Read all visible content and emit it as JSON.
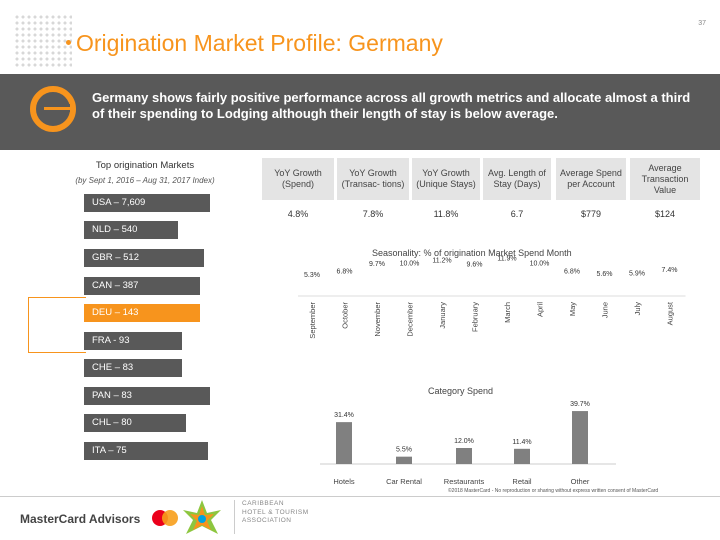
{
  "page_number": "37",
  "title": "Origination Market Profile: Germany",
  "banner_text": "Germany shows fairly positive performance across all growth metrics and allocate almost a third of their spending to Lodging although their length of stay is below average.",
  "markets": {
    "title": "Top origination Markets",
    "subtitle": "(by Sept 1, 2016 – Aug 31, 2017 Index)",
    "items": [
      {
        "label": "USA – 7,609",
        "highlight": false
      },
      {
        "label": "NLD – 540",
        "highlight": false
      },
      {
        "label": "GBR – 512",
        "highlight": false
      },
      {
        "label": "CAN – 387",
        "highlight": false
      },
      {
        "label": "DEU – 143",
        "highlight": true
      },
      {
        "label": "FRA - 93",
        "highlight": false
      },
      {
        "label": "CHE – 83",
        "highlight": false
      },
      {
        "label": "PAN – 83",
        "highlight": false
      },
      {
        "label": "CHL – 80",
        "highlight": false
      },
      {
        "label": "ITA – 75",
        "highlight": false
      }
    ]
  },
  "kpis": [
    {
      "header": "YoY Growth (Spend)",
      "value": "4.8%"
    },
    {
      "header": "YoY Growth (Transac- tions)",
      "value": "7.8%"
    },
    {
      "header": "YoY Growth (Unique Stays)",
      "value": "11.8%"
    },
    {
      "header": "Avg. Length of Stay (Days)",
      "value": "6.7"
    },
    {
      "header": "Average Spend per Account",
      "value": "$779"
    },
    {
      "header": "Average Transaction Value",
      "value": "$124"
    }
  ],
  "colors": {
    "accent": "#f7941d",
    "banner": "#595959",
    "kpi_header": "#e4e4e4",
    "bar": "#808080",
    "mc_red": "#eb001b",
    "mc_yellow": "#f79e1b"
  },
  "chart_data": [
    {
      "type": "line",
      "title": "Seasonality: % of origination Market Spend Month",
      "categories": [
        "September",
        "October",
        "November",
        "December",
        "January",
        "February",
        "March",
        "April",
        "May",
        "June",
        "July",
        "August"
      ],
      "values": [
        5.3,
        6.8,
        9.7,
        10.0,
        11.2,
        9.6,
        11.9,
        10.0,
        6.8,
        5.6,
        5.9,
        7.4
      ],
      "labels": [
        "5.3%",
        "6.8%",
        "9.7%",
        "10.0%",
        "11.2%",
        "9.6%",
        "11.9%",
        "10.0%",
        "6.8%",
        "5.6%",
        "5.9%",
        "7.4%"
      ],
      "ylim": [
        0,
        13
      ]
    },
    {
      "type": "bar",
      "title": "Category Spend",
      "categories": [
        "Hotels",
        "Car Rental",
        "Restaurants",
        "Retail",
        "Other"
      ],
      "values": [
        31.4,
        5.5,
        12.0,
        11.4,
        39.7
      ],
      "labels": [
        "31.4%",
        "5.5%",
        "12.0%",
        "11.4%",
        "39.7%"
      ],
      "ylim": [
        0,
        45
      ]
    }
  ],
  "footer": {
    "mastercard": "MasterCard Advisors",
    "chta_lines": [
      "CARIBBEAN",
      "HOTEL & TOURISM",
      "ASSOCIATION"
    ],
    "copyright": "©2018 MasterCard - No reproduction or sharing without express written consent of MasterCard"
  }
}
